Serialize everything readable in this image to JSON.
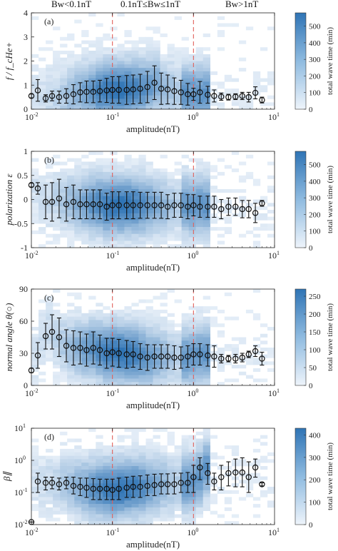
{
  "region_labels": [
    "Bw<0.1nT",
    "0.1nT≤Bw≤1nT",
    "Bw>1nT"
  ],
  "colors": {
    "heat_low": "#eef4fb",
    "heat_high": "#2f74b5",
    "boundary_line": "#e0605a",
    "marker": "#111111"
  },
  "chart_data": [
    {
      "type": "heatmap",
      "panel_label": "(a)",
      "ylabel": "f / f_cHe+",
      "xlabel": "amplitude(nT)",
      "xscale": "log",
      "xlim": [
        0.01,
        10
      ],
      "ylim": [
        0,
        4
      ],
      "yticks": [
        0,
        1,
        2,
        3,
        4
      ],
      "colorbar": {
        "label": "total wave time (min)",
        "range": [
          0,
          580
        ],
        "ticks": [
          0,
          100,
          200,
          300,
          400,
          500
        ]
      },
      "boundaries": [
        0.1,
        1
      ],
      "series": [
        {
          "x": [
            0.01,
            0.012,
            0.015,
            0.018,
            0.022,
            0.027,
            0.033,
            0.04,
            0.048,
            0.058,
            0.07,
            0.085,
            0.1,
            0.12,
            0.15,
            0.18,
            0.22,
            0.27,
            0.33,
            0.4,
            0.48,
            0.58,
            0.7,
            0.85,
            1.0,
            1.2,
            1.5,
            1.8,
            2.2,
            2.7,
            3.3,
            4.0,
            4.8,
            5.8,
            7.0
          ],
          "y": [
            0.55,
            0.78,
            0.45,
            0.55,
            0.5,
            0.55,
            0.62,
            0.7,
            0.72,
            0.72,
            0.75,
            0.78,
            0.8,
            0.8,
            0.8,
            0.82,
            0.85,
            0.92,
            1.1,
            0.85,
            0.82,
            0.75,
            0.7,
            0.62,
            0.62,
            0.7,
            0.6,
            0.55,
            0.52,
            0.5,
            0.52,
            0.55,
            0.5,
            0.68,
            0.38
          ],
          "err": [
            0.08,
            0.45,
            0.15,
            0.2,
            0.25,
            0.3,
            0.4,
            0.4,
            0.45,
            0.45,
            0.45,
            0.5,
            0.55,
            0.55,
            0.6,
            0.6,
            0.6,
            0.65,
            0.7,
            0.65,
            0.6,
            0.55,
            0.5,
            0.45,
            0.25,
            0.45,
            0.35,
            0.25,
            0.15,
            0.12,
            0.12,
            0.15,
            0.2,
            0.25,
            0.12
          ]
        }
      ]
    },
    {
      "type": "heatmap",
      "panel_label": "(b)",
      "ylabel": "polarization ε",
      "xlabel": "amplitude(nT)",
      "xscale": "log",
      "xlim": [
        0.01,
        10
      ],
      "ylim": [
        -1,
        1
      ],
      "yticks": [
        -1,
        -0.5,
        0,
        0.5,
        1
      ],
      "colorbar": {
        "label": "total wave time (min)",
        "range": [
          0,
          580
        ],
        "ticks": [
          0,
          100,
          200,
          300,
          400,
          500
        ]
      },
      "boundaries": [
        0.1,
        1
      ],
      "series": [
        {
          "x": [
            0.01,
            0.012,
            0.015,
            0.018,
            0.022,
            0.027,
            0.033,
            0.04,
            0.048,
            0.058,
            0.07,
            0.085,
            0.1,
            0.12,
            0.15,
            0.18,
            0.22,
            0.27,
            0.33,
            0.4,
            0.48,
            0.58,
            0.7,
            0.85,
            1.0,
            1.2,
            1.5,
            1.8,
            2.2,
            2.7,
            3.3,
            4.0,
            4.8,
            5.8,
            7.0
          ],
          "y": [
            0.3,
            0.23,
            -0.05,
            -0.05,
            0.02,
            -0.1,
            -0.05,
            -0.1,
            -0.1,
            -0.1,
            -0.1,
            -0.15,
            -0.12,
            -0.12,
            -0.12,
            -0.12,
            -0.12,
            -0.12,
            -0.12,
            -0.12,
            -0.15,
            -0.12,
            -0.12,
            -0.15,
            -0.12,
            -0.15,
            -0.15,
            -0.15,
            -0.2,
            -0.15,
            -0.15,
            -0.2,
            -0.2,
            -0.28,
            -0.08
          ],
          "err": [
            0.04,
            0.12,
            0.35,
            0.4,
            0.4,
            0.35,
            0.35,
            0.3,
            0.3,
            0.3,
            0.3,
            0.28,
            0.28,
            0.28,
            0.28,
            0.28,
            0.27,
            0.27,
            0.27,
            0.27,
            0.25,
            0.25,
            0.25,
            0.25,
            0.22,
            0.22,
            0.22,
            0.22,
            0.2,
            0.18,
            0.18,
            0.18,
            0.18,
            0.2,
            0.06
          ]
        }
      ]
    },
    {
      "type": "heatmap",
      "panel_label": "(c)",
      "ylabel": "normal angle θ(○)",
      "xlabel": "amplitude(nT)",
      "xscale": "log",
      "xlim": [
        0.01,
        10
      ],
      "ylim": [
        0,
        90
      ],
      "yticks": [
        0,
        30,
        60,
        90
      ],
      "colorbar": {
        "label": "total wave time (min)",
        "range": [
          0,
          270
        ],
        "ticks": [
          0,
          50,
          100,
          150,
          200,
          250
        ]
      },
      "boundaries": [
        0.1,
        1
      ],
      "series": [
        {
          "x": [
            0.01,
            0.012,
            0.015,
            0.018,
            0.022,
            0.027,
            0.033,
            0.04,
            0.048,
            0.058,
            0.07,
            0.085,
            0.1,
            0.12,
            0.15,
            0.18,
            0.22,
            0.27,
            0.33,
            0.4,
            0.48,
            0.58,
            0.7,
            0.85,
            1.0,
            1.2,
            1.5,
            1.8,
            2.2,
            2.7,
            3.3,
            4.0,
            4.8,
            5.8,
            7.0
          ],
          "y": [
            14,
            28,
            46,
            50,
            45,
            37,
            35,
            35,
            33,
            35,
            33,
            30,
            31,
            30,
            29,
            29,
            27,
            26,
            27,
            27,
            27,
            26,
            26,
            27,
            29,
            29,
            28,
            27,
            25,
            25,
            25,
            26,
            29,
            32,
            25
          ],
          "err": [
            2,
            12,
            12,
            16,
            18,
            15,
            16,
            15,
            15,
            15,
            14,
            14,
            13,
            13,
            13,
            12,
            12,
            12,
            11,
            11,
            11,
            11,
            10,
            10,
            10,
            10,
            10,
            10,
            4,
            3,
            4,
            4,
            3,
            5,
            6
          ]
        }
      ]
    },
    {
      "type": "heatmap",
      "panel_label": "(d)",
      "ylabel": "β∥",
      "xlabel": "amplitude(nT)",
      "xscale": "log",
      "yscale": "log",
      "xlim": [
        0.01,
        10
      ],
      "ylim": [
        0.01,
        10
      ],
      "yticks": [
        0.01,
        0.1,
        1,
        10
      ],
      "colorbar": {
        "label": "total wave time (min)",
        "range": [
          0,
          430
        ],
        "ticks": [
          0,
          100,
          200,
          300,
          400
        ]
      },
      "boundaries": [
        0.1,
        1
      ],
      "series": [
        {
          "x": [
            0.01,
            0.012,
            0.015,
            0.018,
            0.022,
            0.027,
            0.033,
            0.04,
            0.048,
            0.058,
            0.07,
            0.085,
            0.1,
            0.12,
            0.15,
            0.18,
            0.22,
            0.27,
            0.33,
            0.4,
            0.48,
            0.58,
            0.7,
            0.85,
            1.0,
            1.2,
            1.5,
            1.8,
            2.2,
            2.7,
            3.3,
            4.0,
            4.8,
            5.8,
            7.0
          ],
          "y": [
            0.012,
            0.22,
            0.2,
            0.2,
            0.18,
            0.2,
            0.16,
            0.15,
            0.14,
            0.13,
            0.13,
            0.13,
            0.12,
            0.13,
            0.14,
            0.15,
            0.15,
            0.16,
            0.17,
            0.18,
            0.18,
            0.18,
            0.2,
            0.2,
            0.3,
            0.6,
            0.4,
            0.22,
            0.3,
            0.4,
            0.42,
            0.42,
            0.3,
            0.6,
            0.18
          ],
          "lo": [
            0.012,
            0.1,
            0.12,
            0.13,
            0.12,
            0.13,
            0.09,
            0.08,
            0.07,
            0.06,
            0.06,
            0.06,
            0.06,
            0.06,
            0.07,
            0.07,
            0.07,
            0.08,
            0.08,
            0.09,
            0.09,
            0.09,
            0.1,
            0.1,
            0.1,
            0.25,
            0.18,
            0.12,
            0.12,
            0.16,
            0.15,
            0.15,
            0.1,
            0.3,
            0.16
          ],
          "hi": [
            0.012,
            0.4,
            0.3,
            0.3,
            0.28,
            0.3,
            0.3,
            0.28,
            0.28,
            0.27,
            0.26,
            0.26,
            0.26,
            0.28,
            0.3,
            0.32,
            0.33,
            0.35,
            0.37,
            0.38,
            0.38,
            0.4,
            0.4,
            0.42,
            0.7,
            1.2,
            0.8,
            0.4,
            0.7,
            0.9,
            1.1,
            1.2,
            0.9,
            1.1,
            0.2
          ]
        }
      ]
    }
  ]
}
